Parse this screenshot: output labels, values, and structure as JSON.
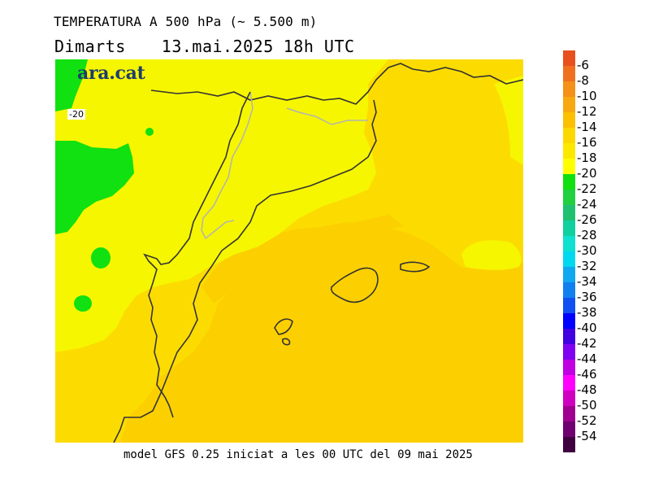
{
  "header": {
    "title": "TEMPERATURA A 500 hPa (~ 5.500 m)",
    "day": "Dimarts",
    "date": "13.mai.2025",
    "time": "18h UTC"
  },
  "logo": {
    "text": "ara.cat"
  },
  "contour_label": "-20",
  "footer": "model GFS 0.25 iniciat a les 00 UTC del 09 mai 2025",
  "legend": {
    "labels": [
      "-6",
      "-8",
      "-10",
      "-12",
      "-14",
      "-16",
      "-18",
      "-20",
      "-22",
      "-24",
      "-26",
      "-28",
      "-30",
      "-32",
      "-34",
      "-36",
      "-38",
      "-40",
      "-42",
      "-44",
      "-46",
      "-48",
      "-50",
      "-52",
      "-54"
    ],
    "colors": [
      "#e8501e",
      "#f07020",
      "#f59018",
      "#f8a810",
      "#fbc000",
      "#fcd800",
      "#fde800",
      "#ffff00",
      "#10e010",
      "#20d040",
      "#20c070",
      "#10d0a0",
      "#10e0d0",
      "#00d8f0",
      "#10a8f0",
      "#1080f0",
      "#1050f0",
      "#0000ff",
      "#4000e0",
      "#8000f0",
      "#c000e0",
      "#ff00ff",
      "#d000c0",
      "#a00090",
      "#700070",
      "#400040"
    ]
  },
  "map": {
    "fill_colors": {
      "band_18_16": "#fcdc00",
      "band_16_14": "#fcd000",
      "band_20_18": "#f6f600",
      "band_below_20": "#11e011",
      "coastline": "#333333",
      "border": "#b3b3b3"
    }
  }
}
